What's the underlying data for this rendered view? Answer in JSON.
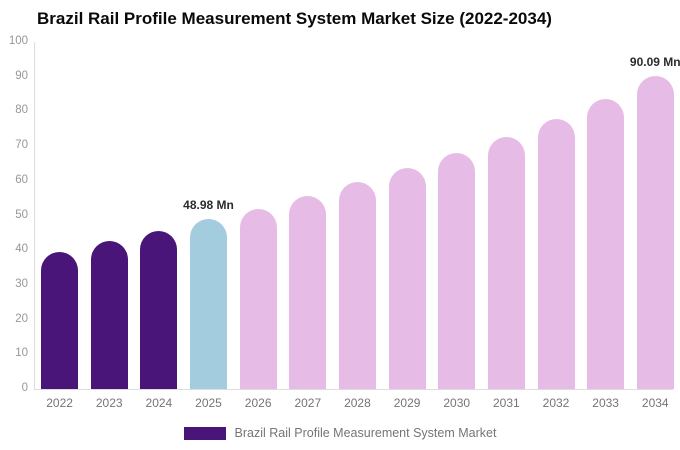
{
  "chart_data": {
    "type": "bar",
    "title": "Brazil Rail Profile Measurement System Market Size (2022-2034)",
    "unit": "Mn",
    "categories": [
      "2022",
      "2023",
      "2024",
      "2025",
      "2026",
      "2027",
      "2028",
      "2029",
      "2030",
      "2031",
      "2032",
      "2033",
      "2034"
    ],
    "values": [
      39.4,
      42.6,
      45.5,
      48.98,
      52.0,
      55.6,
      59.7,
      63.7,
      68.0,
      72.7,
      77.9,
      83.7,
      90.09
    ],
    "point_labels": {
      "2025": "48.98 Mn",
      "2034": "90.09 Mn"
    },
    "ylim": [
      0,
      100
    ],
    "yticks": [
      0,
      10,
      20,
      30,
      40,
      50,
      60,
      70,
      80,
      90,
      100
    ],
    "grid": false,
    "legend_position": "bottom",
    "colors": {
      "historical": "#4A1578",
      "base_year": "#A3CCDF",
      "forecast": "#E6BCE6",
      "axis_line": "#DDDDDD",
      "tick_text": "#979797",
      "xlabel_text": "#757575",
      "value_label_text": "#2B2B2B",
      "title_text": "#0A0A0A"
    },
    "color_keys": [
      "historical",
      "historical",
      "historical",
      "base_year",
      "forecast",
      "forecast",
      "forecast",
      "forecast",
      "forecast",
      "forecast",
      "forecast",
      "forecast",
      "forecast"
    ]
  },
  "legend": {
    "swatch_color": "#4A1578",
    "label": "Brazil Rail Profile Measurement System Market"
  }
}
